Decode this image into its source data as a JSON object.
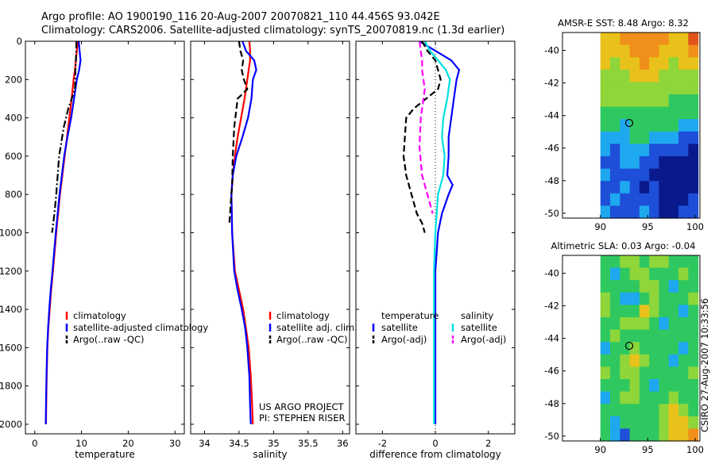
{
  "header": {
    "line1": "Argo profile: AO 1900190_116 20-Aug-2007 20070821_110 44.456S 93.042E",
    "line2": "Climatology: CARS2006. Satellite-adjusted climatology: synTS_20070819.nc (1.3d earlier)"
  },
  "credit": {
    "project": "US ARGO PROJECT",
    "pi": "PI: STEPHEN RISER",
    "stamp": "CSIRO 27-Aug-2007 10:33:56"
  },
  "colors": {
    "climatology": "#ff0000",
    "satellite": "#0000ff",
    "argo": "#000000",
    "salinity_sat": "#00e0e0",
    "salinity_argo": "#ff00ff",
    "map_marker": "#000000"
  },
  "chart_data": [
    {
      "type": "line",
      "panel": "temperature",
      "xlabel": "temperature",
      "xlim": [
        -2,
        32
      ],
      "ylim": [
        2050,
        0
      ],
      "y_reversed": true,
      "xticks": [
        0,
        10,
        20,
        30
      ],
      "yticks": [
        0,
        200,
        400,
        600,
        800,
        1000,
        1200,
        1400,
        1600,
        1800,
        2000
      ],
      "legend": [
        "climatology",
        "satellite-adjusted climatology",
        "Argo(..raw -QC)"
      ],
      "legend_loc": "lower-right",
      "series": [
        {
          "name": "climatology",
          "color": "#ff0000",
          "style": "solid",
          "x": [
            9.2,
            9.0,
            8.8,
            8.6,
            8.3,
            7.9,
            7.4,
            6.9,
            6.4,
            5.9,
            5.4,
            4.6,
            3.9,
            3.5,
            3.2,
            2.9,
            2.7,
            2.55,
            2.45,
            2.4
          ],
          "y": [
            0,
            50,
            100,
            150,
            200,
            300,
            400,
            500,
            600,
            700,
            800,
            1000,
            1200,
            1300,
            1400,
            1500,
            1600,
            1750,
            1900,
            2000
          ]
        },
        {
          "name": "satellite-adjusted climatology",
          "color": "#0000ff",
          "style": "solid",
          "x": [
            9.4,
            9.6,
            9.8,
            9.5,
            9.0,
            8.4,
            7.8,
            7.0,
            6.3,
            5.8,
            5.3,
            4.5,
            3.8,
            3.4,
            3.1,
            2.85,
            2.65,
            2.5,
            2.4,
            2.35
          ],
          "y": [
            0,
            50,
            100,
            150,
            200,
            300,
            400,
            500,
            600,
            700,
            800,
            1000,
            1200,
            1300,
            1400,
            1500,
            1600,
            1750,
            1900,
            2000
          ]
        },
        {
          "name": "Argo(..raw -QC)",
          "color": "#000000",
          "style": "dashdot",
          "x": [
            8.9,
            8.9,
            8.8,
            8.7,
            8.6,
            7.2,
            6.2,
            5.2,
            4.9,
            4.6,
            4.2,
            3.7
          ],
          "y": [
            0,
            50,
            100,
            150,
            250,
            350,
            450,
            600,
            700,
            800,
            900,
            1000
          ]
        }
      ]
    },
    {
      "type": "line",
      "panel": "salinity",
      "xlabel": "salinity",
      "xlim": [
        33.8,
        36.1
      ],
      "ylim": [
        2050,
        0
      ],
      "y_reversed": true,
      "xticks": [
        34,
        34.5,
        35,
        35.5,
        36
      ],
      "legend": [
        "climatology",
        "satellite adj. clim.",
        "Argo(..raw -QC)"
      ],
      "legend_loc": "lower-right",
      "series": [
        {
          "name": "climatology",
          "color": "#ff0000",
          "style": "solid",
          "x": [
            34.65,
            34.66,
            34.66,
            34.64,
            34.62,
            34.58,
            34.53,
            34.48,
            34.44,
            34.41,
            34.39,
            34.4,
            34.44,
            34.5,
            34.56,
            34.6,
            34.64,
            34.67,
            34.69,
            34.7
          ],
          "y": [
            0,
            50,
            100,
            150,
            200,
            300,
            400,
            500,
            600,
            700,
            800,
            1000,
            1200,
            1300,
            1400,
            1500,
            1600,
            1750,
            1900,
            2000
          ]
        },
        {
          "name": "satellite adj. clim.",
          "color": "#0000ff",
          "style": "solid",
          "x": [
            34.55,
            34.6,
            34.72,
            34.75,
            34.7,
            34.68,
            34.63,
            34.55,
            34.46,
            34.41,
            34.39,
            34.4,
            34.43,
            34.48,
            34.54,
            34.59,
            34.62,
            34.65,
            34.66,
            34.67
          ],
          "y": [
            0,
            50,
            100,
            150,
            200,
            300,
            400,
            500,
            600,
            700,
            800,
            1000,
            1200,
            1300,
            1400,
            1500,
            1600,
            1750,
            1900,
            2000
          ]
        },
        {
          "name": "Argo(..raw -QC)",
          "color": "#000000",
          "style": "dashed",
          "x": [
            34.5,
            34.52,
            34.56,
            34.54,
            34.57,
            34.62,
            34.48,
            34.43,
            34.41,
            34.4,
            34.38,
            34.36
          ],
          "y": [
            0,
            50,
            100,
            150,
            200,
            250,
            300,
            450,
            600,
            750,
            850,
            950
          ]
        }
      ]
    },
    {
      "type": "line",
      "panel": "difference",
      "xlabel": "difference from climatology",
      "xlim": [
        -3,
        3
      ],
      "ylim": [
        2050,
        0
      ],
      "y_reversed": true,
      "xticks": [
        -2,
        0,
        2
      ],
      "legend": [
        "temperature",
        "satellite",
        "Argo(-adj)",
        "salinity",
        "satellite",
        "Argo(-adj)"
      ],
      "legend_loc": "lower",
      "series": [
        {
          "name": "satellite",
          "group": "temperature",
          "color": "#0000ff",
          "style": "solid",
          "x": [
            -0.6,
            0.0,
            0.6,
            0.9,
            0.8,
            0.7,
            0.6,
            0.5,
            0.5,
            0.45,
            0.65,
            0.5,
            0.25,
            0.1,
            0.05,
            0.0,
            0.0,
            0.0,
            0.0,
            0.0,
            0.0
          ],
          "y": [
            0,
            50,
            100,
            150,
            200,
            300,
            400,
            500,
            600,
            700,
            750,
            800,
            900,
            1000,
            1100,
            1200,
            1400,
            1600,
            1800,
            1900,
            2000
          ]
        },
        {
          "name": "Argo(-adj)",
          "group": "temperature",
          "color": "#000000",
          "style": "dashed",
          "x": [
            -0.5,
            -0.3,
            0.0,
            0.2,
            0.1,
            -0.8,
            -1.1,
            -1.2,
            -1.1,
            -0.9,
            -0.7,
            -0.5,
            -0.4
          ],
          "y": [
            0,
            50,
            100,
            200,
            250,
            350,
            400,
            600,
            700,
            800,
            900,
            950,
            1000
          ]
        },
        {
          "name": "satellite",
          "group": "salinity",
          "color": "#00e0e0",
          "style": "solid",
          "x": [
            -0.4,
            -0.2,
            0.1,
            0.4,
            0.55,
            0.45,
            0.3,
            0.25,
            0.35,
            0.3,
            0.1,
            0.05,
            0.0,
            -0.05,
            -0.05,
            -0.05,
            -0.05,
            -0.05,
            -0.05
          ],
          "y": [
            0,
            50,
            100,
            150,
            200,
            300,
            400,
            500,
            600,
            700,
            800,
            900,
            1000,
            1200,
            1400,
            1600,
            1800,
            1900,
            2000
          ]
        },
        {
          "name": "Argo(-adj)",
          "group": "salinity",
          "color": "#ff00ff",
          "style": "dashed",
          "x": [
            -0.6,
            -0.55,
            -0.5,
            -0.5,
            -0.4,
            -0.55,
            -0.6,
            -0.5,
            -0.3,
            -0.1
          ],
          "y": [
            0,
            50,
            100,
            150,
            250,
            400,
            550,
            700,
            800,
            900
          ]
        }
      ]
    },
    {
      "type": "heatmap",
      "panel": "sst-map",
      "title": "AMSR-E SST: 8.48 Argo: 8.32",
      "xlim": [
        86,
        100.5
      ],
      "ylim": [
        -50.3,
        -38.9
      ],
      "xticks": [
        90,
        95,
        100
      ],
      "yticks": [
        -40,
        -42,
        -44,
        -46,
        -48,
        -50
      ],
      "argo_position": {
        "lon": 93.042,
        "lat": -44.456
      },
      "cols": 10,
      "rows": 15,
      "field": [
        [
          5,
          5,
          6,
          6,
          6,
          6,
          6,
          5,
          5,
          7
        ],
        [
          5,
          5,
          5,
          6,
          6,
          6,
          5,
          5,
          5,
          6
        ],
        [
          5,
          4,
          5,
          5,
          6,
          5,
          5,
          4,
          5,
          5
        ],
        [
          4,
          4,
          4,
          5,
          5,
          5,
          4,
          4,
          4,
          4
        ],
        [
          4,
          4,
          4,
          4,
          4,
          4,
          4,
          4,
          4,
          4
        ],
        [
          4,
          4,
          4,
          4,
          4,
          4,
          4,
          3,
          3,
          3
        ],
        [
          3,
          3,
          3,
          3,
          3,
          3,
          3,
          3,
          3,
          3
        ],
        [
          3,
          3,
          2,
          3,
          3,
          3,
          3,
          3,
          2,
          2
        ],
        [
          2,
          2,
          2,
          3,
          3,
          2,
          2,
          2,
          1,
          1
        ],
        [
          2,
          1,
          2,
          2,
          2,
          1,
          1,
          1,
          1,
          0
        ],
        [
          1,
          1,
          2,
          2,
          1,
          1,
          0,
          0,
          0,
          0
        ],
        [
          2,
          1,
          1,
          1,
          1,
          0,
          0,
          0,
          0,
          0
        ],
        [
          1,
          1,
          2,
          1,
          0,
          1,
          0,
          0,
          0,
          0
        ],
        [
          1,
          2,
          1,
          1,
          1,
          1,
          0,
          0,
          0,
          1
        ],
        [
          2,
          1,
          1,
          1,
          2,
          1,
          0,
          0,
          1,
          1
        ]
      ],
      "palette": [
        "#0a1a8c",
        "#1e4fd8",
        "#1ea8f0",
        "#2fc860",
        "#8ed63a",
        "#e8c21a",
        "#f0901a",
        "#e0541a"
      ]
    },
    {
      "type": "heatmap",
      "panel": "sla-map",
      "title": "Altimetric SLA: 0.03 Argo: -0.04",
      "xlim": [
        86,
        100.5
      ],
      "ylim": [
        -50.3,
        -38.9
      ],
      "xticks": [
        90,
        95,
        100
      ],
      "yticks": [
        -40,
        -42,
        -44,
        -46,
        -48,
        -50
      ],
      "argo_position": {
        "lon": 93.042,
        "lat": -44.456
      },
      "cols": 10,
      "rows": 15,
      "field": [
        [
          3,
          3,
          4,
          4,
          3,
          4,
          4,
          3,
          3,
          3
        ],
        [
          3,
          2,
          3,
          4,
          4,
          3,
          3,
          3,
          4,
          3
        ],
        [
          3,
          3,
          3,
          3,
          4,
          4,
          3,
          2,
          3,
          3
        ],
        [
          4,
          3,
          2,
          2,
          3,
          4,
          3,
          3,
          3,
          4
        ],
        [
          4,
          3,
          3,
          3,
          5,
          4,
          3,
          3,
          2,
          3
        ],
        [
          3,
          3,
          4,
          4,
          4,
          3,
          2,
          3,
          3,
          3
        ],
        [
          3,
          4,
          3,
          3,
          3,
          3,
          3,
          3,
          3,
          3
        ],
        [
          2,
          3,
          3,
          4,
          3,
          3,
          3,
          3,
          2,
          3
        ],
        [
          3,
          3,
          4,
          5,
          4,
          3,
          3,
          2,
          3,
          3
        ],
        [
          4,
          3,
          4,
          4,
          3,
          3,
          3,
          3,
          3,
          4
        ],
        [
          3,
          3,
          3,
          4,
          3,
          2,
          3,
          3,
          3,
          3
        ],
        [
          2,
          3,
          4,
          4,
          3,
          3,
          3,
          4,
          3,
          3
        ],
        [
          3,
          3,
          3,
          3,
          3,
          3,
          4,
          5,
          4,
          3
        ],
        [
          3,
          2,
          3,
          3,
          3,
          3,
          4,
          5,
          5,
          4
        ],
        [
          3,
          2,
          1,
          3,
          3,
          3,
          4,
          5,
          5,
          6
        ]
      ],
      "palette": [
        "#0a1a8c",
        "#1e4fd8",
        "#1ea8f0",
        "#2fc860",
        "#8ed63a",
        "#e8c21a",
        "#f0901a",
        "#e0541a"
      ]
    }
  ]
}
